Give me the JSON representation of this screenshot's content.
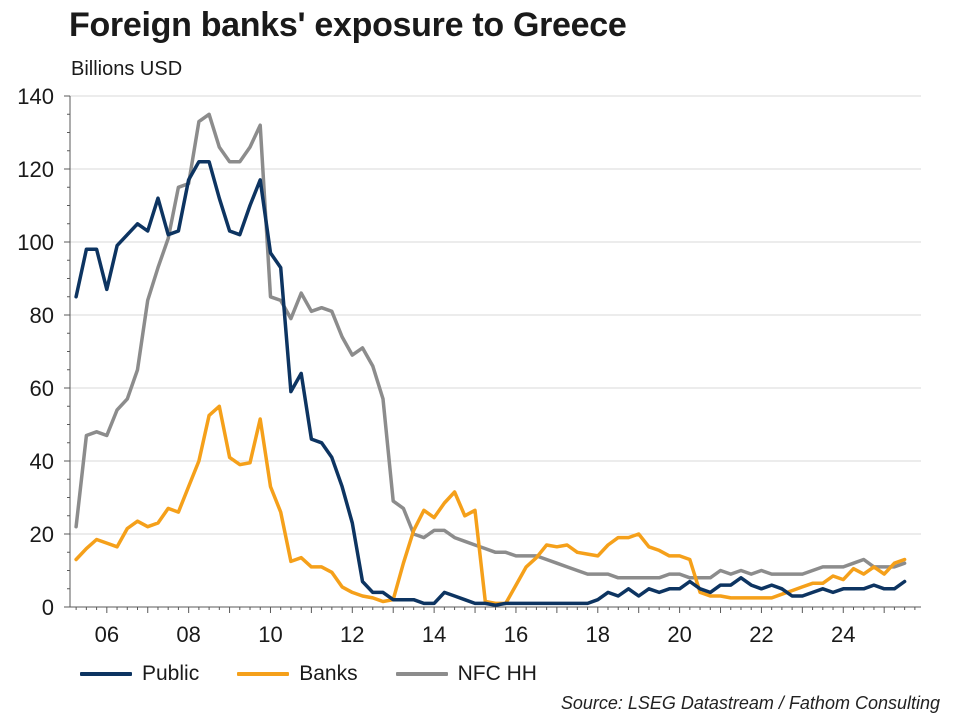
{
  "title": "Foreign banks' exposure to Greece",
  "subtitle": "Billions USD",
  "source": "Source: LSEG Datastream / Fathom Consulting",
  "colors": {
    "public": "#0d3461",
    "banks": "#f5a01a",
    "nfc_hh": "#8c8c8c",
    "grid": "#d9d9d9",
    "axis": "#595959"
  },
  "chart_data": {
    "type": "line",
    "title": "Foreign banks' exposure to Greece",
    "ylabel": "Billions USD",
    "xlabel": "",
    "xlim": [
      2005.1,
      2025.9
    ],
    "ylim": [
      0,
      140
    ],
    "yticks": [
      0,
      20,
      40,
      60,
      80,
      100,
      120,
      140
    ],
    "xticks": [
      {
        "value": 2006,
        "label": "06"
      },
      {
        "value": 2008,
        "label": "08"
      },
      {
        "value": 2010,
        "label": "10"
      },
      {
        "value": 2012,
        "label": "12"
      },
      {
        "value": 2014,
        "label": "14"
      },
      {
        "value": 2016,
        "label": "16"
      },
      {
        "value": 2018,
        "label": "18"
      },
      {
        "value": 2020,
        "label": "20"
      },
      {
        "value": 2022,
        "label": "22"
      },
      {
        "value": 2024,
        "label": "24"
      }
    ],
    "grid": true,
    "legend": "bottom",
    "start": 2005.25,
    "step": 0.25,
    "series": [
      {
        "key": "public",
        "name": "Public",
        "values": [
          85,
          98,
          98,
          87,
          99,
          102,
          105,
          103,
          112,
          102,
          103,
          117,
          122,
          122,
          112,
          103,
          102,
          110,
          117,
          97,
          93,
          59,
          64,
          46,
          45,
          41,
          33,
          23,
          7,
          4,
          4,
          2,
          2,
          2,
          1,
          1,
          4,
          3,
          2,
          1,
          1,
          0.5,
          1,
          1,
          1,
          1,
          1,
          1,
          1,
          1,
          1,
          2,
          4,
          3,
          5,
          3,
          5,
          4,
          5,
          5,
          7,
          5,
          4,
          6,
          6,
          8,
          6,
          5,
          6,
          5,
          3,
          3,
          4,
          5,
          4,
          5,
          5,
          5,
          6,
          5,
          5,
          7
        ]
      },
      {
        "key": "banks",
        "name": "Banks",
        "values": [
          13,
          16,
          18.5,
          17.5,
          16.5,
          21.5,
          23.5,
          22,
          23,
          27,
          26,
          33,
          40,
          52.5,
          55,
          41,
          39,
          39.5,
          51.5,
          33,
          26,
          12.5,
          13.5,
          11,
          11,
          9.5,
          5.5,
          4,
          3,
          2.5,
          1.5,
          2,
          12,
          21,
          26.5,
          24.5,
          28.5,
          31.5,
          25,
          26.5,
          1.5,
          1,
          1,
          6,
          11,
          13.5,
          17,
          16.5,
          17,
          15,
          14.5,
          14,
          17,
          19,
          19,
          20,
          16.5,
          15.5,
          14,
          14,
          13,
          4,
          3,
          3,
          2.5,
          2.5,
          2.5,
          2.5,
          2.5,
          3.5,
          4.5,
          5.5,
          6.5,
          6.5,
          8.5,
          7.5,
          10.5,
          9,
          11,
          9,
          12,
          13
        ]
      },
      {
        "key": "nfc_hh",
        "name": "NFC HH",
        "values": [
          22,
          47,
          48,
          47,
          54,
          57,
          65,
          84,
          93,
          101,
          115,
          116,
          133,
          135,
          126,
          122,
          122,
          126,
          132,
          85,
          84,
          79,
          86,
          81,
          82,
          81,
          74,
          69,
          71,
          66,
          57,
          29,
          27,
          20,
          19,
          21,
          21,
          19,
          18,
          17,
          16,
          15,
          15,
          14,
          14,
          14,
          13,
          12,
          11,
          10,
          9,
          9,
          9,
          8,
          8,
          8,
          8,
          8,
          9,
          9,
          8,
          8,
          8,
          10,
          9,
          10,
          9,
          10,
          9,
          9,
          9,
          9,
          10,
          11,
          11,
          11,
          12,
          13,
          11,
          11,
          11,
          12
        ]
      }
    ]
  }
}
